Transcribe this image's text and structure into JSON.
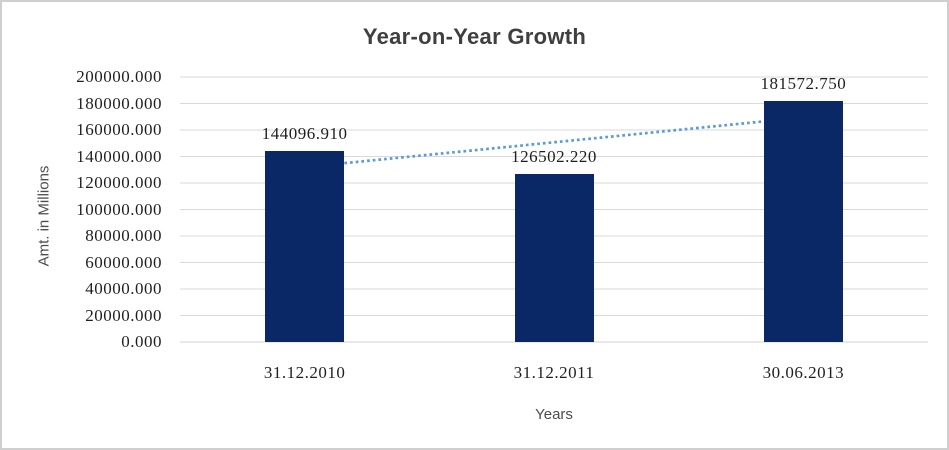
{
  "chart_data": {
    "type": "bar",
    "title": "Year-on-Year Growth",
    "xlabel": "Years",
    "ylabel": "Amt. in Millions",
    "categories": [
      "31.12.2010",
      "31.12.2011",
      "30.06.2013"
    ],
    "values": [
      144096.91,
      126502.22,
      181572.75
    ],
    "data_labels": [
      "144096.910",
      "126502.220",
      "181572.750"
    ],
    "ylim": [
      0,
      200000
    ],
    "ytick_step": 20000,
    "ytick_labels": [
      "0.000",
      "20000.000",
      "40000.000",
      "60000.000",
      "80000.000",
      "100000.000",
      "120000.000",
      "140000.000",
      "160000.000",
      "180000.000",
      "200000.000"
    ],
    "grid": true,
    "legend": "none",
    "trendline": {
      "type": "linear",
      "style": "dotted"
    },
    "colors": {
      "bar": "#0a2766",
      "trendline": "#5b9bd5",
      "gridline": "#d9d9d9",
      "axis_line": "#d0d0d0",
      "title_text": "#3f3f3f",
      "tick_text": "#1f1f1f",
      "axis_title_text": "#4d4d4d"
    }
  }
}
